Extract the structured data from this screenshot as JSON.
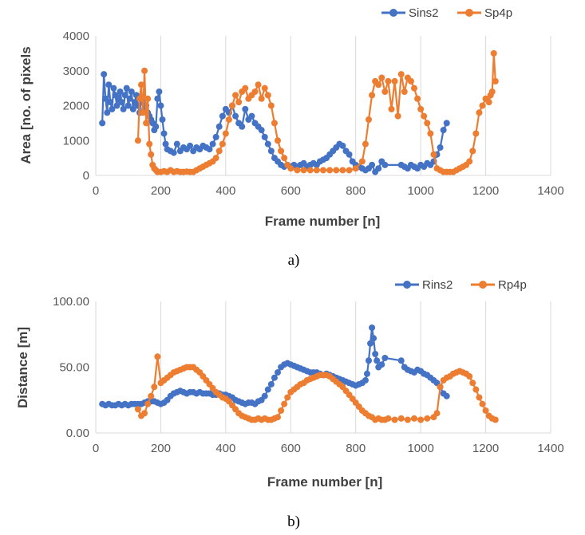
{
  "chart_data": [
    {
      "type": "scatter",
      "panel_label": "a)",
      "xlabel": "Frame number [n]",
      "ylabel": "Area [no. of pixels",
      "xlim": [
        0,
        1400
      ],
      "ylim": [
        0,
        4000
      ],
      "x_ticks": [
        "0",
        "200",
        "400",
        "600",
        "800",
        "1000",
        "1200",
        "1400"
      ],
      "y_ticks": [
        "0",
        "1000",
        "2000",
        "3000",
        "4000"
      ],
      "grid": "vertical",
      "legend_position": "top-right",
      "series": [
        {
          "name": "Sins2",
          "color": "#4472C4",
          "x": [
            20,
            25,
            30,
            35,
            40,
            45,
            50,
            55,
            60,
            65,
            70,
            75,
            80,
            85,
            90,
            95,
            100,
            105,
            110,
            115,
            120,
            125,
            130,
            135,
            140,
            145,
            150,
            155,
            160,
            165,
            170,
            175,
            180,
            185,
            190,
            195,
            200,
            205,
            210,
            215,
            220,
            230,
            240,
            250,
            260,
            270,
            280,
            290,
            300,
            310,
            320,
            330,
            340,
            350,
            360,
            370,
            380,
            390,
            400,
            410,
            420,
            430,
            440,
            450,
            460,
            470,
            480,
            490,
            500,
            510,
            520,
            530,
            540,
            550,
            560,
            570,
            580,
            590,
            600,
            610,
            620,
            630,
            640,
            650,
            660,
            670,
            680,
            690,
            700,
            710,
            720,
            730,
            740,
            750,
            760,
            770,
            780,
            790,
            800,
            810,
            820,
            830,
            840,
            850,
            860,
            870,
            880,
            890,
            940,
            950,
            960,
            970,
            980,
            990,
            1000,
            1010,
            1020,
            1030,
            1040,
            1050,
            1060,
            1070,
            1080
          ],
          "y": [
            1500,
            2900,
            2200,
            1800,
            2600,
            2100,
            1900,
            2500,
            2300,
            2000,
            2200,
            2400,
            2100,
            1900,
            2300,
            2500,
            2000,
            2200,
            2400,
            1900,
            2100,
            2300,
            2000,
            1800,
            2200,
            2100,
            1900,
            2000,
            1800,
            1700,
            1600,
            1500,
            1300,
            1400,
            2200,
            2400,
            2000,
            1600,
            1200,
            900,
            750,
            700,
            650,
            900,
            700,
            800,
            750,
            850,
            700,
            800,
            750,
            850,
            800,
            750,
            900,
            1100,
            1400,
            1700,
            1900,
            1800,
            2000,
            1700,
            1500,
            1400,
            1900,
            1600,
            1700,
            1500,
            1400,
            1300,
            1100,
            900,
            700,
            500,
            400,
            300,
            250,
            300,
            250,
            300,
            250,
            300,
            350,
            250,
            300,
            350,
            300,
            400,
            450,
            500,
            600,
            700,
            800,
            900,
            850,
            700,
            600,
            400,
            300,
            250,
            200,
            150,
            200,
            300,
            100,
            200,
            400,
            300,
            300,
            250,
            200,
            300,
            250,
            200,
            300,
            250,
            350,
            300,
            400,
            600,
            800,
            1300,
            1500
          ]
        },
        {
          "name": "Sp4p",
          "color": "#ED7D31",
          "x": [
            130,
            135,
            140,
            145,
            150,
            155,
            160,
            165,
            170,
            175,
            180,
            185,
            190,
            200,
            210,
            220,
            230,
            240,
            250,
            260,
            270,
            280,
            290,
            300,
            310,
            320,
            330,
            340,
            350,
            360,
            370,
            380,
            390,
            400,
            410,
            420,
            430,
            440,
            450,
            460,
            470,
            480,
            490,
            500,
            510,
            520,
            530,
            540,
            550,
            560,
            570,
            580,
            590,
            600,
            620,
            640,
            660,
            680,
            700,
            720,
            740,
            760,
            780,
            800,
            820,
            830,
            840,
            850,
            860,
            870,
            880,
            890,
            900,
            910,
            920,
            930,
            940,
            950,
            960,
            970,
            980,
            990,
            1000,
            1010,
            1020,
            1030,
            1040,
            1050,
            1060,
            1070,
            1080,
            1090,
            1100,
            1110,
            1120,
            1130,
            1140,
            1150,
            1160,
            1170,
            1180,
            1190,
            1200,
            1210,
            1215,
            1220,
            1225,
            1230
          ],
          "y": [
            1000,
            2200,
            2600,
            1800,
            3000,
            1500,
            2200,
            900,
            600,
            300,
            200,
            150,
            100,
            100,
            120,
            100,
            150,
            100,
            120,
            100,
            100,
            110,
            100,
            100,
            150,
            200,
            250,
            300,
            350,
            400,
            500,
            700,
            900,
            1200,
            1600,
            2000,
            2300,
            2100,
            2400,
            2500,
            2200,
            2300,
            2400,
            2600,
            2200,
            2500,
            2300,
            2000,
            1500,
            1000,
            700,
            500,
            300,
            200,
            150,
            150,
            150,
            150,
            150,
            150,
            150,
            150,
            150,
            200,
            400,
            900,
            1600,
            2300,
            2700,
            2600,
            2800,
            2400,
            2700,
            1900,
            2700,
            1700,
            2900,
            2400,
            2800,
            2700,
            2500,
            2200,
            1900,
            1700,
            1500,
            1200,
            600,
            200,
            150,
            100,
            100,
            100,
            100,
            150,
            200,
            250,
            300,
            400,
            700,
            1200,
            1800,
            2000,
            2200,
            2100,
            2300,
            2400,
            3500,
            2700
          ]
        }
      ]
    },
    {
      "type": "scatter",
      "panel_label": "b)",
      "xlabel": "Frame number [n]",
      "ylabel": "Distance [m]",
      "xlim": [
        0,
        1400
      ],
      "ylim": [
        0,
        100
      ],
      "x_ticks": [
        "0",
        "200",
        "400",
        "600",
        "800",
        "1000",
        "1200",
        "1400"
      ],
      "y_ticks": [
        "0.00",
        "50.00",
        "100.00"
      ],
      "grid": "vertical",
      "legend_position": "top-right",
      "series": [
        {
          "name": "Rins2",
          "color": "#4472C4",
          "x": [
            20,
            30,
            40,
            50,
            60,
            70,
            80,
            90,
            100,
            110,
            120,
            130,
            140,
            150,
            160,
            170,
            180,
            190,
            200,
            210,
            220,
            230,
            240,
            250,
            260,
            270,
            280,
            290,
            300,
            310,
            320,
            330,
            340,
            350,
            360,
            370,
            380,
            390,
            400,
            410,
            420,
            430,
            440,
            450,
            460,
            470,
            480,
            490,
            500,
            510,
            520,
            530,
            540,
            550,
            560,
            570,
            580,
            590,
            600,
            610,
            620,
            630,
            640,
            650,
            660,
            670,
            680,
            690,
            700,
            710,
            720,
            730,
            740,
            750,
            760,
            770,
            780,
            790,
            800,
            810,
            820,
            830,
            835,
            840,
            845,
            850,
            855,
            860,
            865,
            870,
            880,
            890,
            940,
            950,
            960,
            970,
            980,
            990,
            1000,
            1010,
            1020,
            1030,
            1040,
            1050,
            1060,
            1070,
            1080
          ],
          "y": [
            22,
            21,
            22,
            21,
            21,
            22,
            21,
            22,
            21,
            22,
            22,
            22,
            22,
            23,
            24,
            24,
            24,
            23,
            22,
            23,
            25,
            28,
            30,
            31,
            32,
            31,
            30,
            31,
            31,
            30,
            31,
            30,
            30,
            30,
            29,
            29,
            30,
            29,
            29,
            28,
            27,
            25,
            24,
            23,
            22,
            23,
            23,
            22,
            24,
            25,
            28,
            33,
            37,
            42,
            46,
            50,
            52,
            53,
            52,
            51,
            50,
            49,
            48,
            47,
            46,
            46,
            46,
            45,
            44,
            45,
            44,
            43,
            42,
            41,
            40,
            39,
            38,
            37,
            36,
            37,
            38,
            40,
            45,
            55,
            68,
            80,
            72,
            60,
            55,
            50,
            52,
            57,
            55,
            50,
            48,
            47,
            46,
            48,
            47,
            45,
            44,
            42,
            40,
            38,
            35,
            30,
            28
          ]
        },
        {
          "name": "Rp4p",
          "color": "#ED7D31",
          "x": [
            130,
            140,
            150,
            160,
            170,
            180,
            190,
            200,
            210,
            220,
            230,
            240,
            250,
            260,
            270,
            280,
            290,
            300,
            310,
            320,
            330,
            340,
            350,
            360,
            370,
            380,
            390,
            400,
            410,
            420,
            430,
            440,
            450,
            460,
            470,
            480,
            490,
            500,
            510,
            520,
            530,
            540,
            550,
            560,
            570,
            580,
            590,
            600,
            610,
            620,
            630,
            640,
            650,
            660,
            670,
            680,
            690,
            700,
            710,
            720,
            730,
            740,
            750,
            760,
            770,
            780,
            790,
            800,
            810,
            820,
            830,
            840,
            850,
            860,
            870,
            880,
            890,
            900,
            920,
            940,
            960,
            980,
            1000,
            1020,
            1040,
            1050,
            1060,
            1070,
            1080,
            1090,
            1100,
            1110,
            1120,
            1130,
            1140,
            1150,
            1160,
            1170,
            1180,
            1190,
            1200,
            1210,
            1220,
            1230
          ],
          "y": [
            18,
            13,
            15,
            22,
            28,
            35,
            58,
            38,
            40,
            42,
            44,
            46,
            47,
            48,
            49,
            50,
            50,
            50,
            48,
            46,
            43,
            40,
            37,
            34,
            31,
            29,
            27,
            26,
            24,
            21,
            18,
            15,
            13,
            12,
            11,
            10,
            10,
            11,
            10,
            11,
            10,
            10,
            11,
            12,
            17,
            22,
            27,
            31,
            33,
            35,
            37,
            38,
            40,
            41,
            42,
            43,
            44,
            44,
            44,
            43,
            41,
            39,
            37,
            35,
            32,
            29,
            26,
            23,
            20,
            17,
            15,
            13,
            12,
            10,
            11,
            10,
            10,
            11,
            10,
            11,
            10,
            11,
            10,
            11,
            12,
            15,
            35,
            40,
            42,
            43,
            45,
            46,
            47,
            46,
            45,
            43,
            38,
            33,
            27,
            22,
            17,
            13,
            11,
            10
          ]
        }
      ]
    }
  ]
}
